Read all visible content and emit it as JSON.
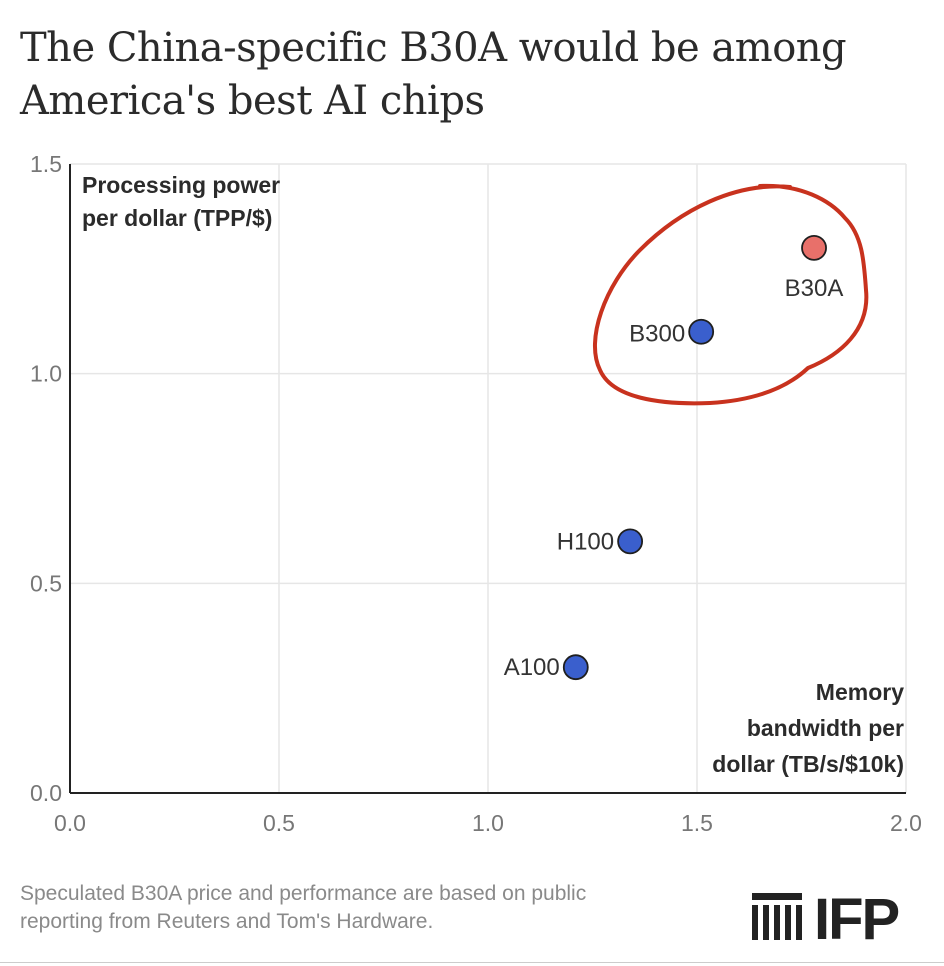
{
  "title": "The China-specific B30A would be among America's best AI chips",
  "chart_data": {
    "type": "scatter",
    "title": "The China-specific B30A would be among America's best AI chips",
    "xlabel_lines": [
      "Memory",
      "bandwidth per",
      "dollar (TB/s/$10k)"
    ],
    "ylabel_lines": [
      "Processing power",
      "per dollar (TPP/$)"
    ],
    "xlim": [
      0,
      2.0
    ],
    "ylim": [
      0,
      1.5
    ],
    "xticks": [
      0,
      0.5,
      1.0,
      1.5,
      2.0
    ],
    "yticks": [
      0,
      0.5,
      1.0,
      1.5
    ],
    "xtick_labels": [
      "0.0",
      "0.5",
      "1.0",
      "1.5",
      "2.0"
    ],
    "ytick_labels": [
      "0.0",
      "0.5",
      "1.0",
      "1.5"
    ],
    "grid": true,
    "points": [
      {
        "label": "A100",
        "x": 1.21,
        "y": 0.3,
        "color": "#3a5fcd"
      },
      {
        "label": "H100",
        "x": 1.34,
        "y": 0.6,
        "color": "#3a5fcd"
      },
      {
        "label": "B300",
        "x": 1.51,
        "y": 1.1,
        "color": "#3a5fcd"
      },
      {
        "label": "B30A",
        "x": 1.78,
        "y": 1.3,
        "color": "#e8706a"
      }
    ],
    "highlight_color": "#c8321e"
  },
  "footer": {
    "note_lines": [
      "Speculated B30A price and performance are based on public",
      "reporting from Reuters and Tom's Hardware."
    ],
    "logo_text": "IFP"
  }
}
